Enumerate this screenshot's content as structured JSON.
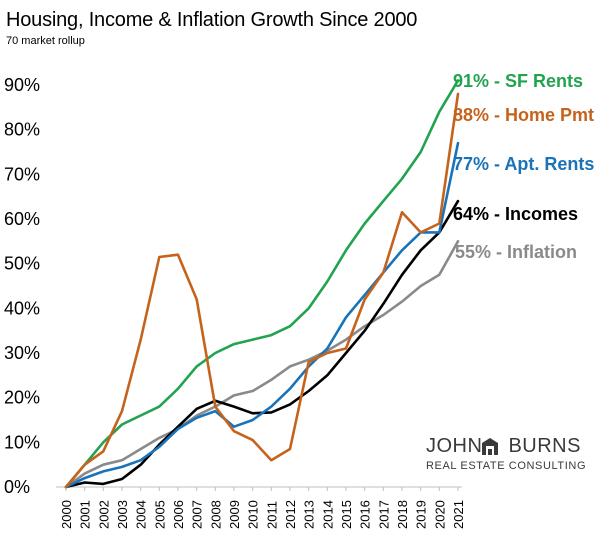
{
  "chart_data": {
    "type": "line",
    "title": "Housing, Income & Inflation Growth Since 2000",
    "subtitle": "70 market rollup",
    "xlabel": "",
    "ylabel": "",
    "ylim": [
      0,
      90
    ],
    "y_ticks": [
      "0%",
      "10%",
      "20%",
      "30%",
      "40%",
      "50%",
      "60%",
      "70%",
      "80%",
      "90%"
    ],
    "x": [
      "2000",
      "2001",
      "2002",
      "2003",
      "2004",
      "2005",
      "2006",
      "2007",
      "2008",
      "2009",
      "2010",
      "2011",
      "2012",
      "2013",
      "2014",
      "2015",
      "2016",
      "2017",
      "2018",
      "2019",
      "2020",
      "2021"
    ],
    "grid": false,
    "series": [
      {
        "label": "91% - SF Rents",
        "color": "#22a350",
        "values": [
          0,
          5,
          10,
          14,
          16,
          18,
          22,
          27,
          30,
          32,
          33,
          34,
          36,
          40,
          46,
          53,
          59,
          64,
          69,
          75,
          84,
          91
        ]
      },
      {
        "label": "88% - Home Pmt",
        "color": "#c5631c",
        "values": [
          0,
          5,
          8,
          17,
          33,
          51.5,
          52,
          42,
          18,
          12.5,
          10.5,
          6,
          8.5,
          28,
          30,
          31,
          42,
          48,
          61.5,
          57,
          59,
          88
        ]
      },
      {
        "label": "77% - Apt. Rents",
        "color": "#1a73b8",
        "values": [
          0,
          2,
          3.5,
          4.5,
          6,
          9,
          13,
          15.5,
          17,
          13.5,
          15,
          18,
          22,
          27,
          31,
          38,
          43,
          48,
          53,
          57,
          57,
          77
        ]
      },
      {
        "label": "64% - Incomes",
        "color": "#000000",
        "values": [
          0,
          1,
          0.7,
          1.8,
          5,
          9.5,
          13.5,
          17.5,
          19.3,
          18,
          16.5,
          16.7,
          18.5,
          21.5,
          25,
          30,
          35,
          41,
          47.5,
          53,
          57,
          64
        ]
      },
      {
        "label": "55% - Inflation",
        "color": "#8a8a8a",
        "values": [
          0,
          3,
          5,
          6,
          8.5,
          11,
          13,
          16,
          18,
          20.5,
          21.5,
          24,
          27,
          28.5,
          30.5,
          33,
          36,
          38.5,
          41.5,
          45,
          47.5,
          55
        ]
      }
    ]
  },
  "branding": {
    "logo_line1_left": "JOHN",
    "logo_line1_right": "BURNS",
    "logo_line2": "REAL ESTATE CONSULTING",
    "logo_color": "#3a3a3a"
  }
}
